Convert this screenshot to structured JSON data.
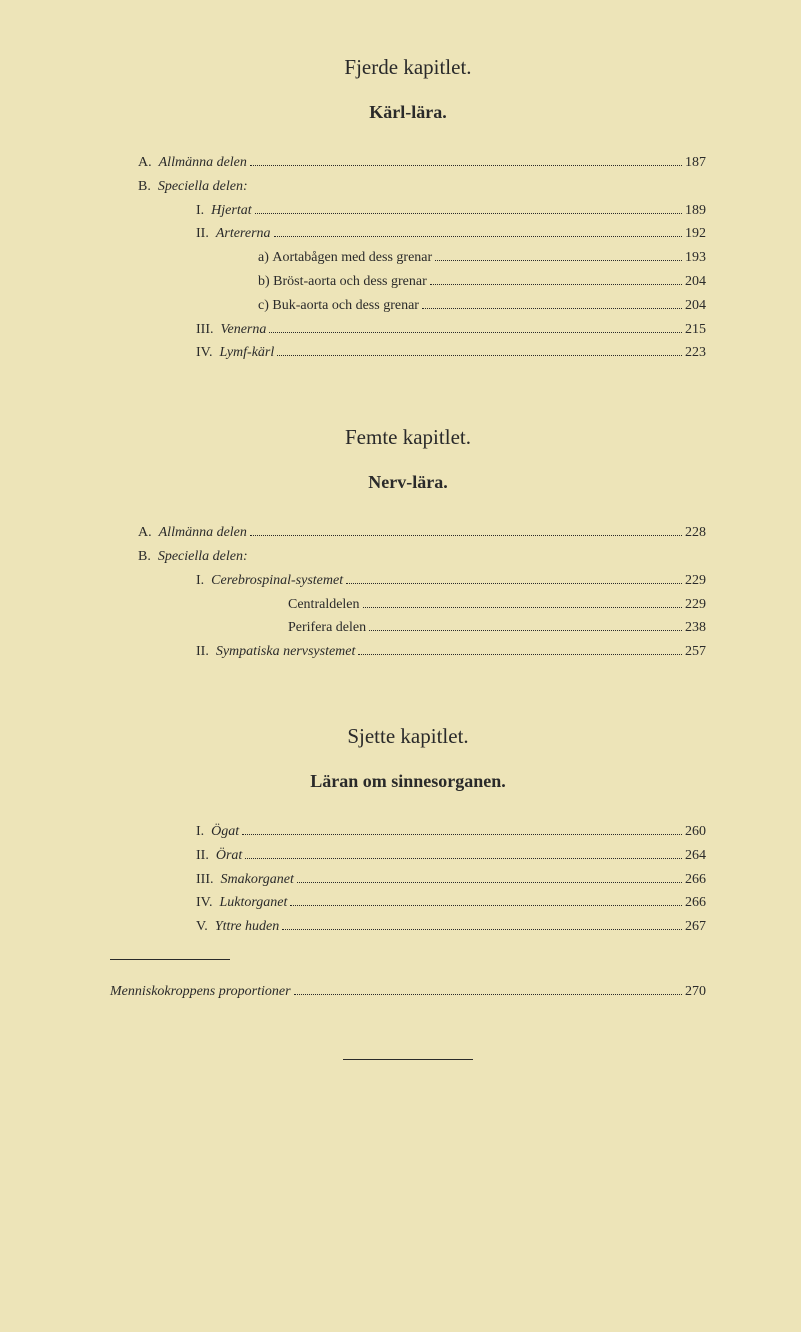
{
  "colors": {
    "page_background": "#ede4b8",
    "text_color": "#2a2a2a"
  },
  "typography": {
    "body_font": "Times New Roman, serif",
    "chapter_title_size": 21,
    "section_title_size": 18,
    "entry_size": 14
  },
  "chapter4": {
    "title": "Fjerde kapitlet.",
    "section": "Kärl-lära.",
    "entries": [
      {
        "label": "A.  ",
        "text": "Allmänna delen",
        "italic": true,
        "page": "187",
        "indent": 1
      },
      {
        "label": "B.  ",
        "text": "Speciella delen:",
        "italic": true,
        "page": null,
        "indent": 1
      },
      {
        "label": "I.  ",
        "text": "Hjertat",
        "italic": true,
        "page": "189",
        "indent": 2
      },
      {
        "label": "II.  ",
        "text": "Artererna",
        "italic": true,
        "page": "192",
        "indent": 2
      },
      {
        "label": "a) ",
        "text": "Aortabågen med dess grenar",
        "italic": false,
        "page": "193",
        "indent": 3
      },
      {
        "label": "b) ",
        "text": "Bröst-aorta och dess grenar",
        "italic": false,
        "page": "204",
        "indent": 3
      },
      {
        "label": "c) ",
        "text": "Buk-aorta och dess grenar",
        "italic": false,
        "page": "204",
        "indent": 3
      },
      {
        "label": "III.  ",
        "text": "Venerna",
        "italic": true,
        "page": "215",
        "indent": 2
      },
      {
        "label": "IV.  ",
        "text": "Lymf-kärl",
        "italic": true,
        "page": "223",
        "indent": 2
      }
    ]
  },
  "chapter5": {
    "title": "Femte kapitlet.",
    "section": "Nerv-lära.",
    "entries": [
      {
        "label": "A.  ",
        "text": "Allmänna delen",
        "italic": true,
        "page": "228",
        "indent": 1
      },
      {
        "label": "B.  ",
        "text": "Speciella delen:",
        "italic": true,
        "page": null,
        "indent": 1
      },
      {
        "label": "I.  ",
        "text": "Cerebrospinal-systemet",
        "italic": true,
        "page": "229",
        "indent": 2
      },
      {
        "label": "",
        "text": "Centraldelen",
        "italic": false,
        "page": "229",
        "indent": 4
      },
      {
        "label": "",
        "text": "Perifera delen",
        "italic": false,
        "page": "238",
        "indent": 4
      },
      {
        "label": "II.  ",
        "text": "Sympatiska nervsystemet",
        "italic": true,
        "page": "257",
        "indent": 2
      }
    ]
  },
  "chapter6": {
    "title": "Sjette kapitlet.",
    "section": "Läran om sinnesorganen.",
    "entries": [
      {
        "label": "I.  ",
        "text": "Ögat",
        "italic": true,
        "page": "260",
        "indent": 2
      },
      {
        "label": "II.  ",
        "text": "Örat",
        "italic": true,
        "page": "264",
        "indent": 2
      },
      {
        "label": "III.  ",
        "text": "Smakorganet",
        "italic": true,
        "page": "266",
        "indent": 2
      },
      {
        "label": "IV.  ",
        "text": "Luktorganet",
        "italic": true,
        "page": "266",
        "indent": 2
      },
      {
        "label": "V.  ",
        "text": "Yttre huden",
        "italic": true,
        "page": "267",
        "indent": 2
      }
    ]
  },
  "appendix": {
    "text": "Menniskokroppens proportioner",
    "page": "270"
  }
}
